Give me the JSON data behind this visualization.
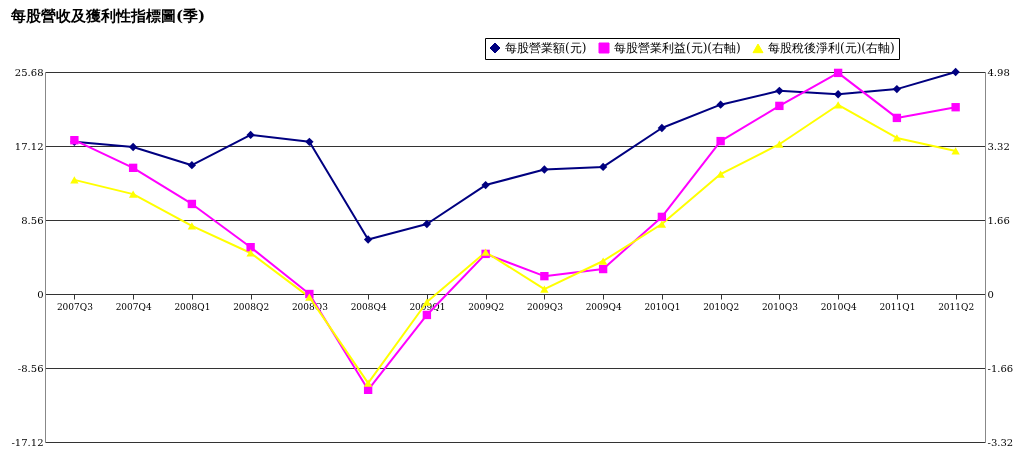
{
  "chart_data": {
    "type": "line",
    "title": "每股營收及獲利性指標圖(季)",
    "categories": [
      "2007Q3",
      "2007Q4",
      "2008Q1",
      "2008Q2",
      "2008Q3",
      "2008Q4",
      "2009Q1",
      "2009Q2",
      "2009Q3",
      "2009Q4",
      "2010Q1",
      "2010Q2",
      "2010Q3",
      "2010Q4",
      "2011Q1",
      "2011Q2"
    ],
    "series": [
      {
        "name": "每股營業額(元)",
        "color": "#000080",
        "marker": "diamond",
        "values": [
          17.6,
          17.0,
          14.9,
          18.4,
          17.6,
          6.3,
          8.1,
          12.6,
          14.4,
          14.7,
          19.2,
          21.9,
          23.5,
          23.1,
          23.7,
          25.68
        ]
      },
      {
        "name": "每股營業利益(元)(右軸)",
        "color": "#ff00ff",
        "marker": "square",
        "axis": "y2",
        "values": [
          3.45,
          2.83,
          2.02,
          1.05,
          0.0,
          -2.15,
          -0.47,
          0.9,
          0.4,
          0.56,
          1.73,
          3.43,
          4.22,
          4.96,
          3.95,
          4.19
        ]
      },
      {
        "name": "每股稅後淨利(元)(右軸)",
        "color": "#ffff00",
        "marker": "triangle",
        "axis": "y2",
        "values": [
          2.56,
          2.24,
          1.53,
          0.92,
          -0.07,
          -2.0,
          -0.18,
          0.94,
          0.11,
          0.74,
          1.57,
          2.69,
          3.36,
          4.24,
          3.5,
          3.21
        ]
      }
    ],
    "ylim": [
      -17.12,
      25.68
    ],
    "yticks": [
      -17.12,
      -8.56,
      0,
      8.56,
      17.12,
      25.68
    ],
    "y2lim": [
      -3.32,
      4.98
    ],
    "y2ticks": [
      -3.32,
      -1.66,
      0,
      1.66,
      3.32,
      4.98
    ],
    "grid": "y",
    "legend": "top right"
  }
}
